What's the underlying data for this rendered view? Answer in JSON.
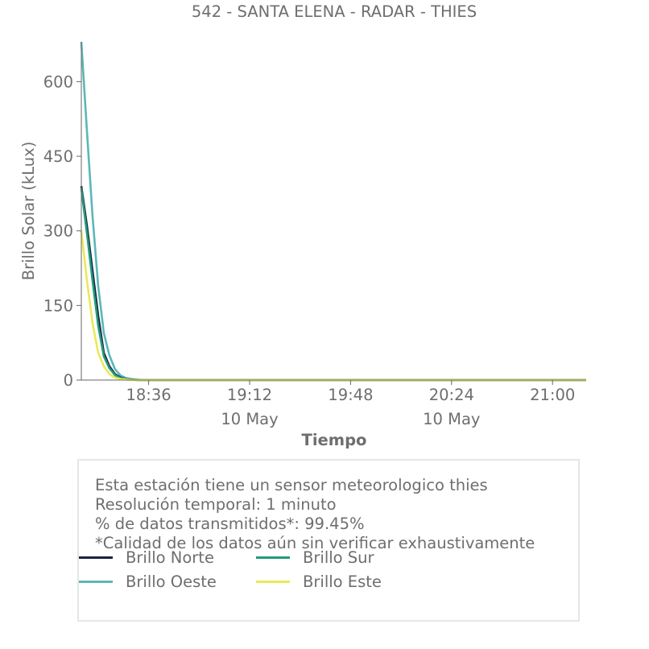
{
  "chart_data": {
    "type": "line",
    "title": "542 - SANTA ELENA - RADAR - THIES",
    "xlabel": "Tiempo",
    "ylabel": "Brillo Solar (kLux)",
    "x_start": "18:12",
    "x_end": "21:12",
    "x_ticks": [
      "18:36",
      "19:12",
      "19:48",
      "20:24",
      "21:00"
    ],
    "x_date_labels": [
      {
        "under": "19:12",
        "label": "10 May"
      },
      {
        "under": "20:24",
        "label": "10 May"
      }
    ],
    "ylim": [
      0,
      680
    ],
    "y_ticks": [
      0,
      150,
      300,
      450,
      600
    ],
    "grid": false,
    "x": [
      "18:12",
      "18:14",
      "18:16",
      "18:18",
      "18:20",
      "18:22",
      "18:24",
      "18:26",
      "18:28",
      "18:30",
      "18:32",
      "18:34",
      "18:36",
      "18:40",
      "19:00",
      "19:30",
      "20:00",
      "20:30",
      "21:00",
      "21:12"
    ],
    "series": [
      {
        "name": "Brillo Norte",
        "color": "#1b2440",
        "values": [
          390,
          310,
          220,
          130,
          55,
          28,
          12,
          5,
          2,
          1,
          0,
          0,
          0,
          0,
          0,
          0,
          0,
          0,
          0,
          0
        ]
      },
      {
        "name": "Brillo Oeste",
        "color": "#5ab8b8",
        "values": [
          680,
          500,
          330,
          190,
          95,
          50,
          22,
          9,
          4,
          2,
          1,
          0,
          0,
          0,
          0,
          0,
          0,
          0,
          0,
          0
        ]
      },
      {
        "name": "Brillo Sur",
        "color": "#229b7a",
        "values": [
          385,
          295,
          200,
          110,
          48,
          24,
          10,
          4,
          2,
          1,
          0,
          0,
          0,
          0,
          0,
          0,
          0,
          0,
          0,
          0
        ]
      },
      {
        "name": "Brillo Este",
        "color": "#ece85a",
        "values": [
          300,
          200,
          115,
          55,
          28,
          12,
          5,
          2,
          1,
          0,
          0,
          0,
          0,
          0,
          0,
          0,
          0,
          0,
          0,
          0
        ]
      }
    ]
  },
  "info": {
    "line1": "Esta estación tiene un sensor meteorologico thies",
    "line2": "Resolución temporal: 1 minuto",
    "line3": "% de datos transmitidos*: 99.45%",
    "line4": "*Calidad de los datos aún sin verificar exhaustivamente"
  },
  "legend": [
    {
      "label": "Brillo Norte",
      "color": "#1b2440"
    },
    {
      "label": "Brillo Sur",
      "color": "#229b7a"
    },
    {
      "label": "Brillo Oeste",
      "color": "#5ab8b8"
    },
    {
      "label": "Brillo Este",
      "color": "#ece85a"
    }
  ]
}
